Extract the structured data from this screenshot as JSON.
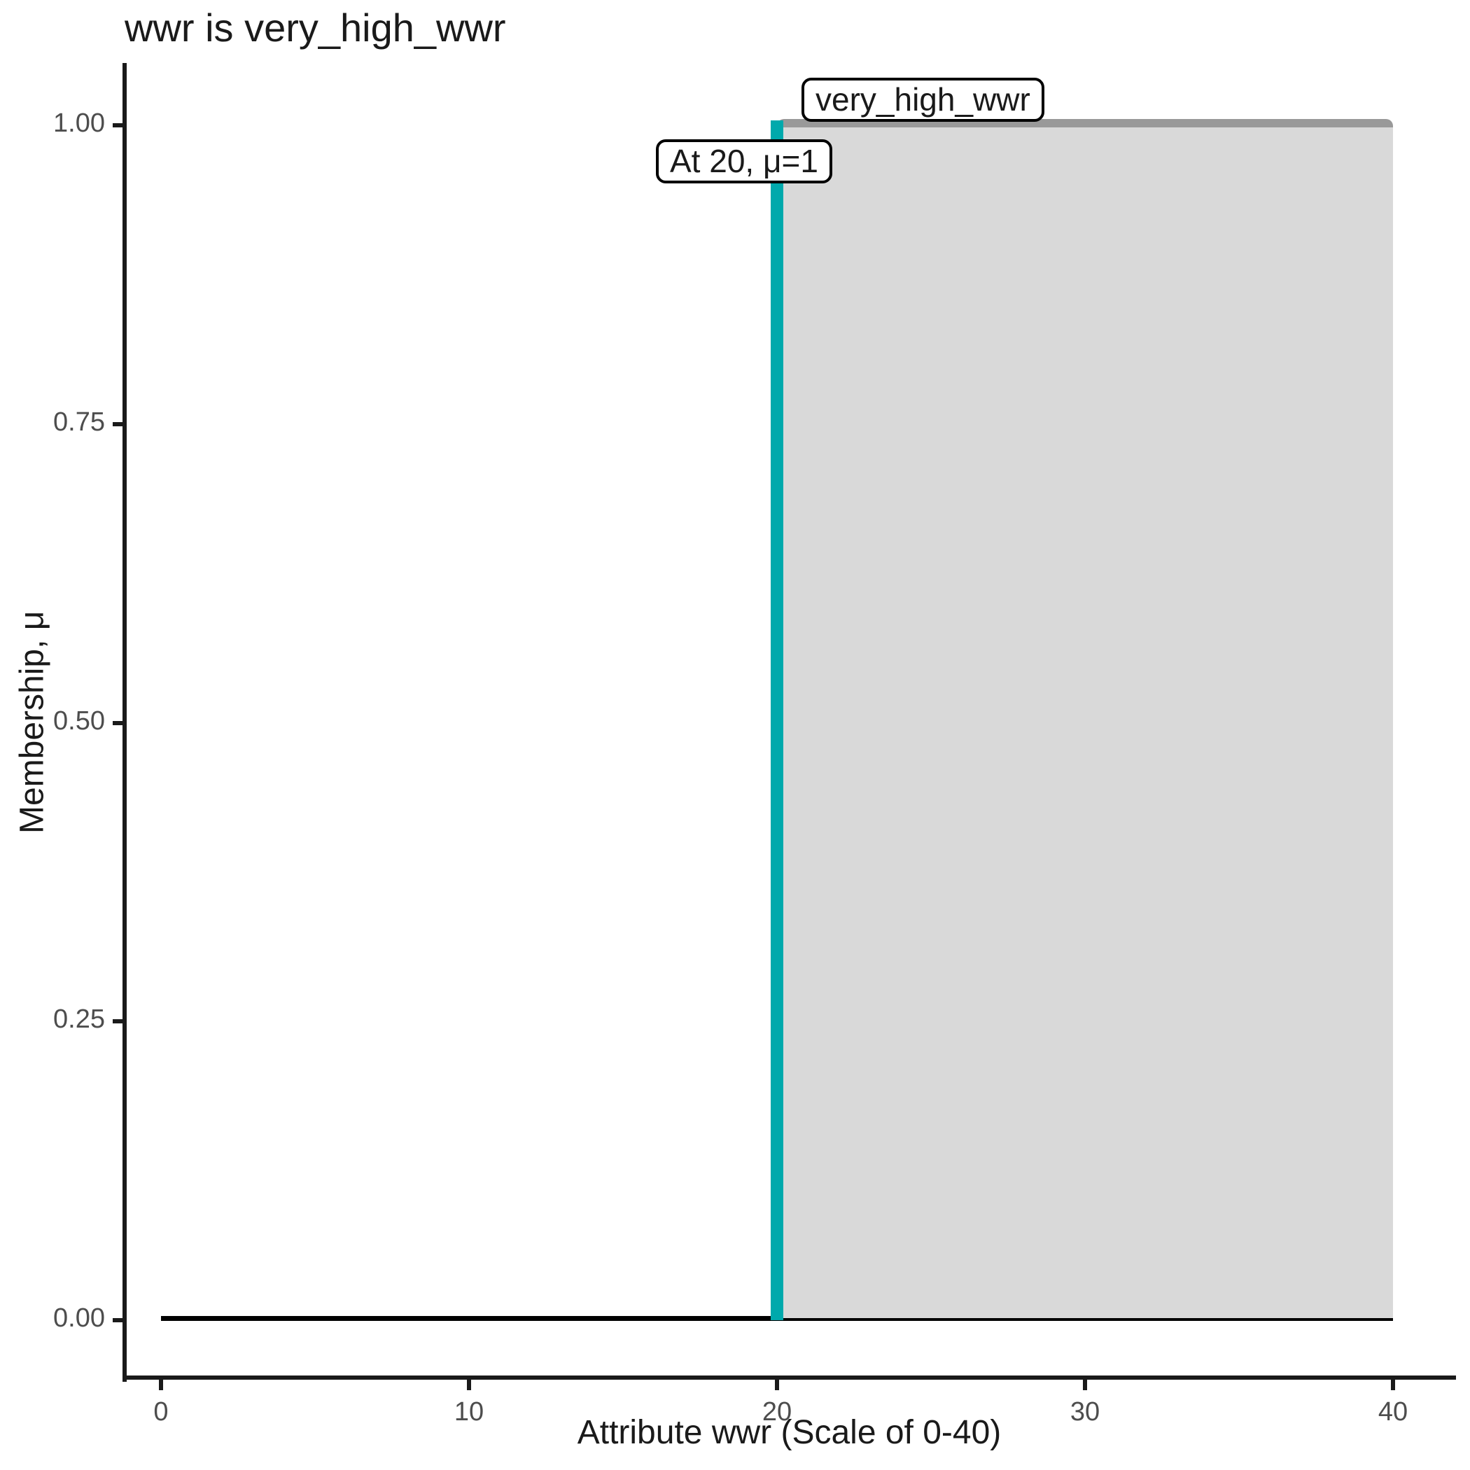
{
  "chart_data": {
    "type": "area",
    "title": "wwr is very_high_wwr",
    "xlabel": "Attribute wwr (Scale of 0-40)",
    "ylabel": "Membership, μ",
    "xlim": [
      0,
      40
    ],
    "ylim": [
      0,
      1
    ],
    "x_ticks": [
      "0",
      "10",
      "20",
      "30",
      "40"
    ],
    "y_ticks": [
      "0.00",
      "0.25",
      "0.50",
      "0.75",
      "1.00"
    ],
    "grid": "off",
    "legend": "none",
    "series": [
      {
        "name": "baseline",
        "type": "line",
        "color": "#000000",
        "points": [
          [
            0,
            0
          ],
          [
            40,
            0
          ]
        ]
      },
      {
        "name": "very_high_wwr",
        "type": "area",
        "fill": "#D9D9D9",
        "stroke": "#999999",
        "points": [
          [
            20,
            0
          ],
          [
            20,
            1
          ],
          [
            40,
            1
          ],
          [
            40,
            0
          ]
        ],
        "description": "rectangular membership function: μ=0 for wwr<20, μ=1 for 20≤wwr≤40"
      },
      {
        "name": "input-highlight",
        "type": "vline",
        "color": "#00A9AC",
        "x": 20,
        "from_mu": 0,
        "to_mu": 1
      }
    ],
    "annotations": [
      {
        "label": "very_high_wwr",
        "anchor_x": 20,
        "anchor_y": 1,
        "placement": "above-right-of-anchor"
      },
      {
        "label": "At 20, μ=1",
        "anchor_x": 20,
        "anchor_y": 1,
        "placement": "left-below-anchor"
      }
    ],
    "colors": {
      "teal": "#00A9AC",
      "area-fill": "#D9D9D9",
      "area-stroke": "#999999",
      "axis-line": "#1A1A1A",
      "axis-text": "#4D4D4D",
      "text": "#1A1A1A",
      "annotation-border": "#000000",
      "baseline": "#000000"
    }
  }
}
